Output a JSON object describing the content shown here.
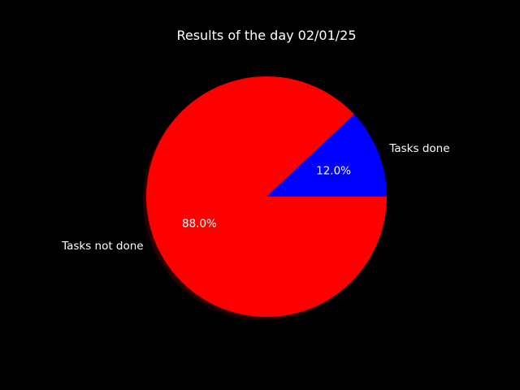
{
  "chart_data": {
    "type": "pie",
    "title": "Results of the day 02/01/25",
    "categories": [
      "Tasks done",
      "Tasks not done"
    ],
    "values": [
      12.0,
      88.0
    ],
    "percent_labels": [
      "12.0%",
      "88.0%"
    ],
    "colors": [
      "#0000ff",
      "#ff0000"
    ],
    "start_angle_degrees": 0,
    "direction": "counterclockwise",
    "shadow": true,
    "legend": "none",
    "background": "#000000",
    "text_color": "#ffffff"
  }
}
